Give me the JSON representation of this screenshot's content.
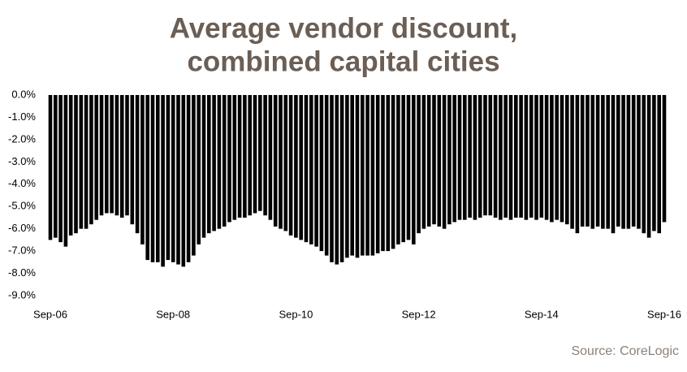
{
  "chart_data": {
    "type": "bar",
    "title": [
      "Average vendor discount,",
      "combined capital cities"
    ],
    "source": "Source: CoreLogic",
    "color": "#000000",
    "categories": [
      "Sep-06",
      null,
      null,
      null,
      null,
      null,
      null,
      null,
      null,
      null,
      null,
      null,
      null,
      null,
      null,
      null,
      null,
      null,
      null,
      null,
      null,
      null,
      null,
      null,
      "Sep-08",
      null,
      null,
      null,
      null,
      null,
      null,
      null,
      null,
      null,
      null,
      null,
      null,
      null,
      null,
      null,
      null,
      null,
      null,
      null,
      null,
      null,
      null,
      null,
      "Sep-10",
      null,
      null,
      null,
      null,
      null,
      null,
      null,
      null,
      null,
      null,
      null,
      null,
      null,
      null,
      null,
      null,
      null,
      null,
      null,
      null,
      null,
      null,
      null,
      "Sep-12",
      null,
      null,
      null,
      null,
      null,
      null,
      null,
      null,
      null,
      null,
      null,
      null,
      null,
      null,
      null,
      null,
      null,
      null,
      null,
      null,
      null,
      null,
      null,
      "Sep-14",
      null,
      null,
      null,
      null,
      null,
      null,
      null,
      null,
      null,
      null,
      null,
      null,
      null,
      null,
      null,
      null,
      null,
      null,
      null,
      null,
      null,
      null,
      null,
      "Sep-16"
    ],
    "values": [
      -6.5,
      -6.4,
      -6.6,
      -6.8,
      -6.3,
      -6.2,
      -6.0,
      -6.0,
      -5.8,
      -5.6,
      -5.4,
      -5.3,
      -5.3,
      -5.4,
      -5.5,
      -5.4,
      -5.8,
      -6.2,
      -6.7,
      -7.4,
      -7.5,
      -7.5,
      -7.7,
      -7.4,
      -7.5,
      -7.6,
      -7.7,
      -7.5,
      -7.2,
      -6.7,
      -6.4,
      -6.2,
      -6.1,
      -6.0,
      -5.9,
      -5.7,
      -5.6,
      -5.5,
      -5.5,
      -5.4,
      -5.3,
      -5.2,
      -5.4,
      -5.6,
      -5.9,
      -6.0,
      -6.1,
      -6.3,
      -6.4,
      -6.5,
      -6.6,
      -6.7,
      -6.8,
      -7.0,
      -7.2,
      -7.5,
      -7.6,
      -7.5,
      -7.3,
      -7.2,
      -7.3,
      -7.2,
      -7.2,
      -7.2,
      -7.1,
      -7.0,
      -7.0,
      -6.9,
      -6.7,
      -6.6,
      -6.5,
      -6.7,
      -6.2,
      -6.0,
      -5.9,
      -5.8,
      -5.9,
      -6.0,
      -5.8,
      -5.7,
      -5.6,
      -5.6,
      -5.5,
      -5.6,
      -5.5,
      -5.4,
      -5.4,
      -5.5,
      -5.6,
      -5.5,
      -5.6,
      -5.5,
      -5.5,
      -5.6,
      -5.5,
      -5.6,
      -5.5,
      -5.6,
      -5.7,
      -5.6,
      -5.7,
      -5.8,
      -6.0,
      -6.2,
      -5.9,
      -5.9,
      -6.0,
      -5.9,
      -6.0,
      -6.0,
      -6.2,
      -5.9,
      -6.0,
      -6.0,
      -5.9,
      -6.0,
      -6.2,
      -6.4,
      -6.1,
      -6.2,
      -5.7
    ],
    "ylim": [
      -9,
      0
    ],
    "yticks": [
      {
        "value": 0,
        "label": "0.0%"
      },
      {
        "value": -1,
        "label": "-1.0%"
      },
      {
        "value": -2,
        "label": "-2.0%"
      },
      {
        "value": -3,
        "label": "-3.0%"
      },
      {
        "value": -4,
        "label": "-4.0%"
      },
      {
        "value": -5,
        "label": "-5.0%"
      },
      {
        "value": -6,
        "label": "-6.0%"
      },
      {
        "value": -7,
        "label": "-7.0%"
      },
      {
        "value": -8,
        "label": "-8.0%"
      },
      {
        "value": -9,
        "label": "-9.0%"
      }
    ],
    "grid": false
  }
}
